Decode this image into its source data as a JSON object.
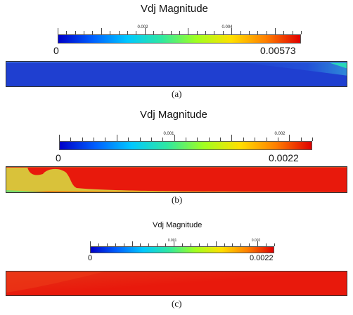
{
  "panels": [
    {
      "title": "Vdj Magnitude",
      "min_label": "0",
      "max_label": "0.00573",
      "mid_labels": [
        "0.002",
        "0.004"
      ],
      "caption": "(a)",
      "colors": {
        "bg": "#1f3fd0",
        "edge": "#3ac6a8",
        "accent": "#28d8b8"
      }
    },
    {
      "title": "Vdj Magnitude",
      "min_label": "0",
      "max_label": "0.0022",
      "mid_labels": [
        "0.001",
        "0.002"
      ],
      "caption": "(b)",
      "colors": {
        "bg": "#e8190c",
        "bump": "#d9c23a",
        "edge": "#2f8cf0"
      }
    },
    {
      "title": "Vdj Magnitude",
      "min_label": "0",
      "max_label": "0.0022",
      "mid_labels": [
        "0.001",
        "0.002"
      ],
      "caption": "(c)",
      "colors": {
        "bg": "#e8190c",
        "edge": "#7ddc6a"
      }
    }
  ],
  "colormap": [
    "#0000c8",
    "#0060ff",
    "#00c8ff",
    "#30e8a0",
    "#a0ff20",
    "#ffe000",
    "#ff8000",
    "#e00000"
  ]
}
